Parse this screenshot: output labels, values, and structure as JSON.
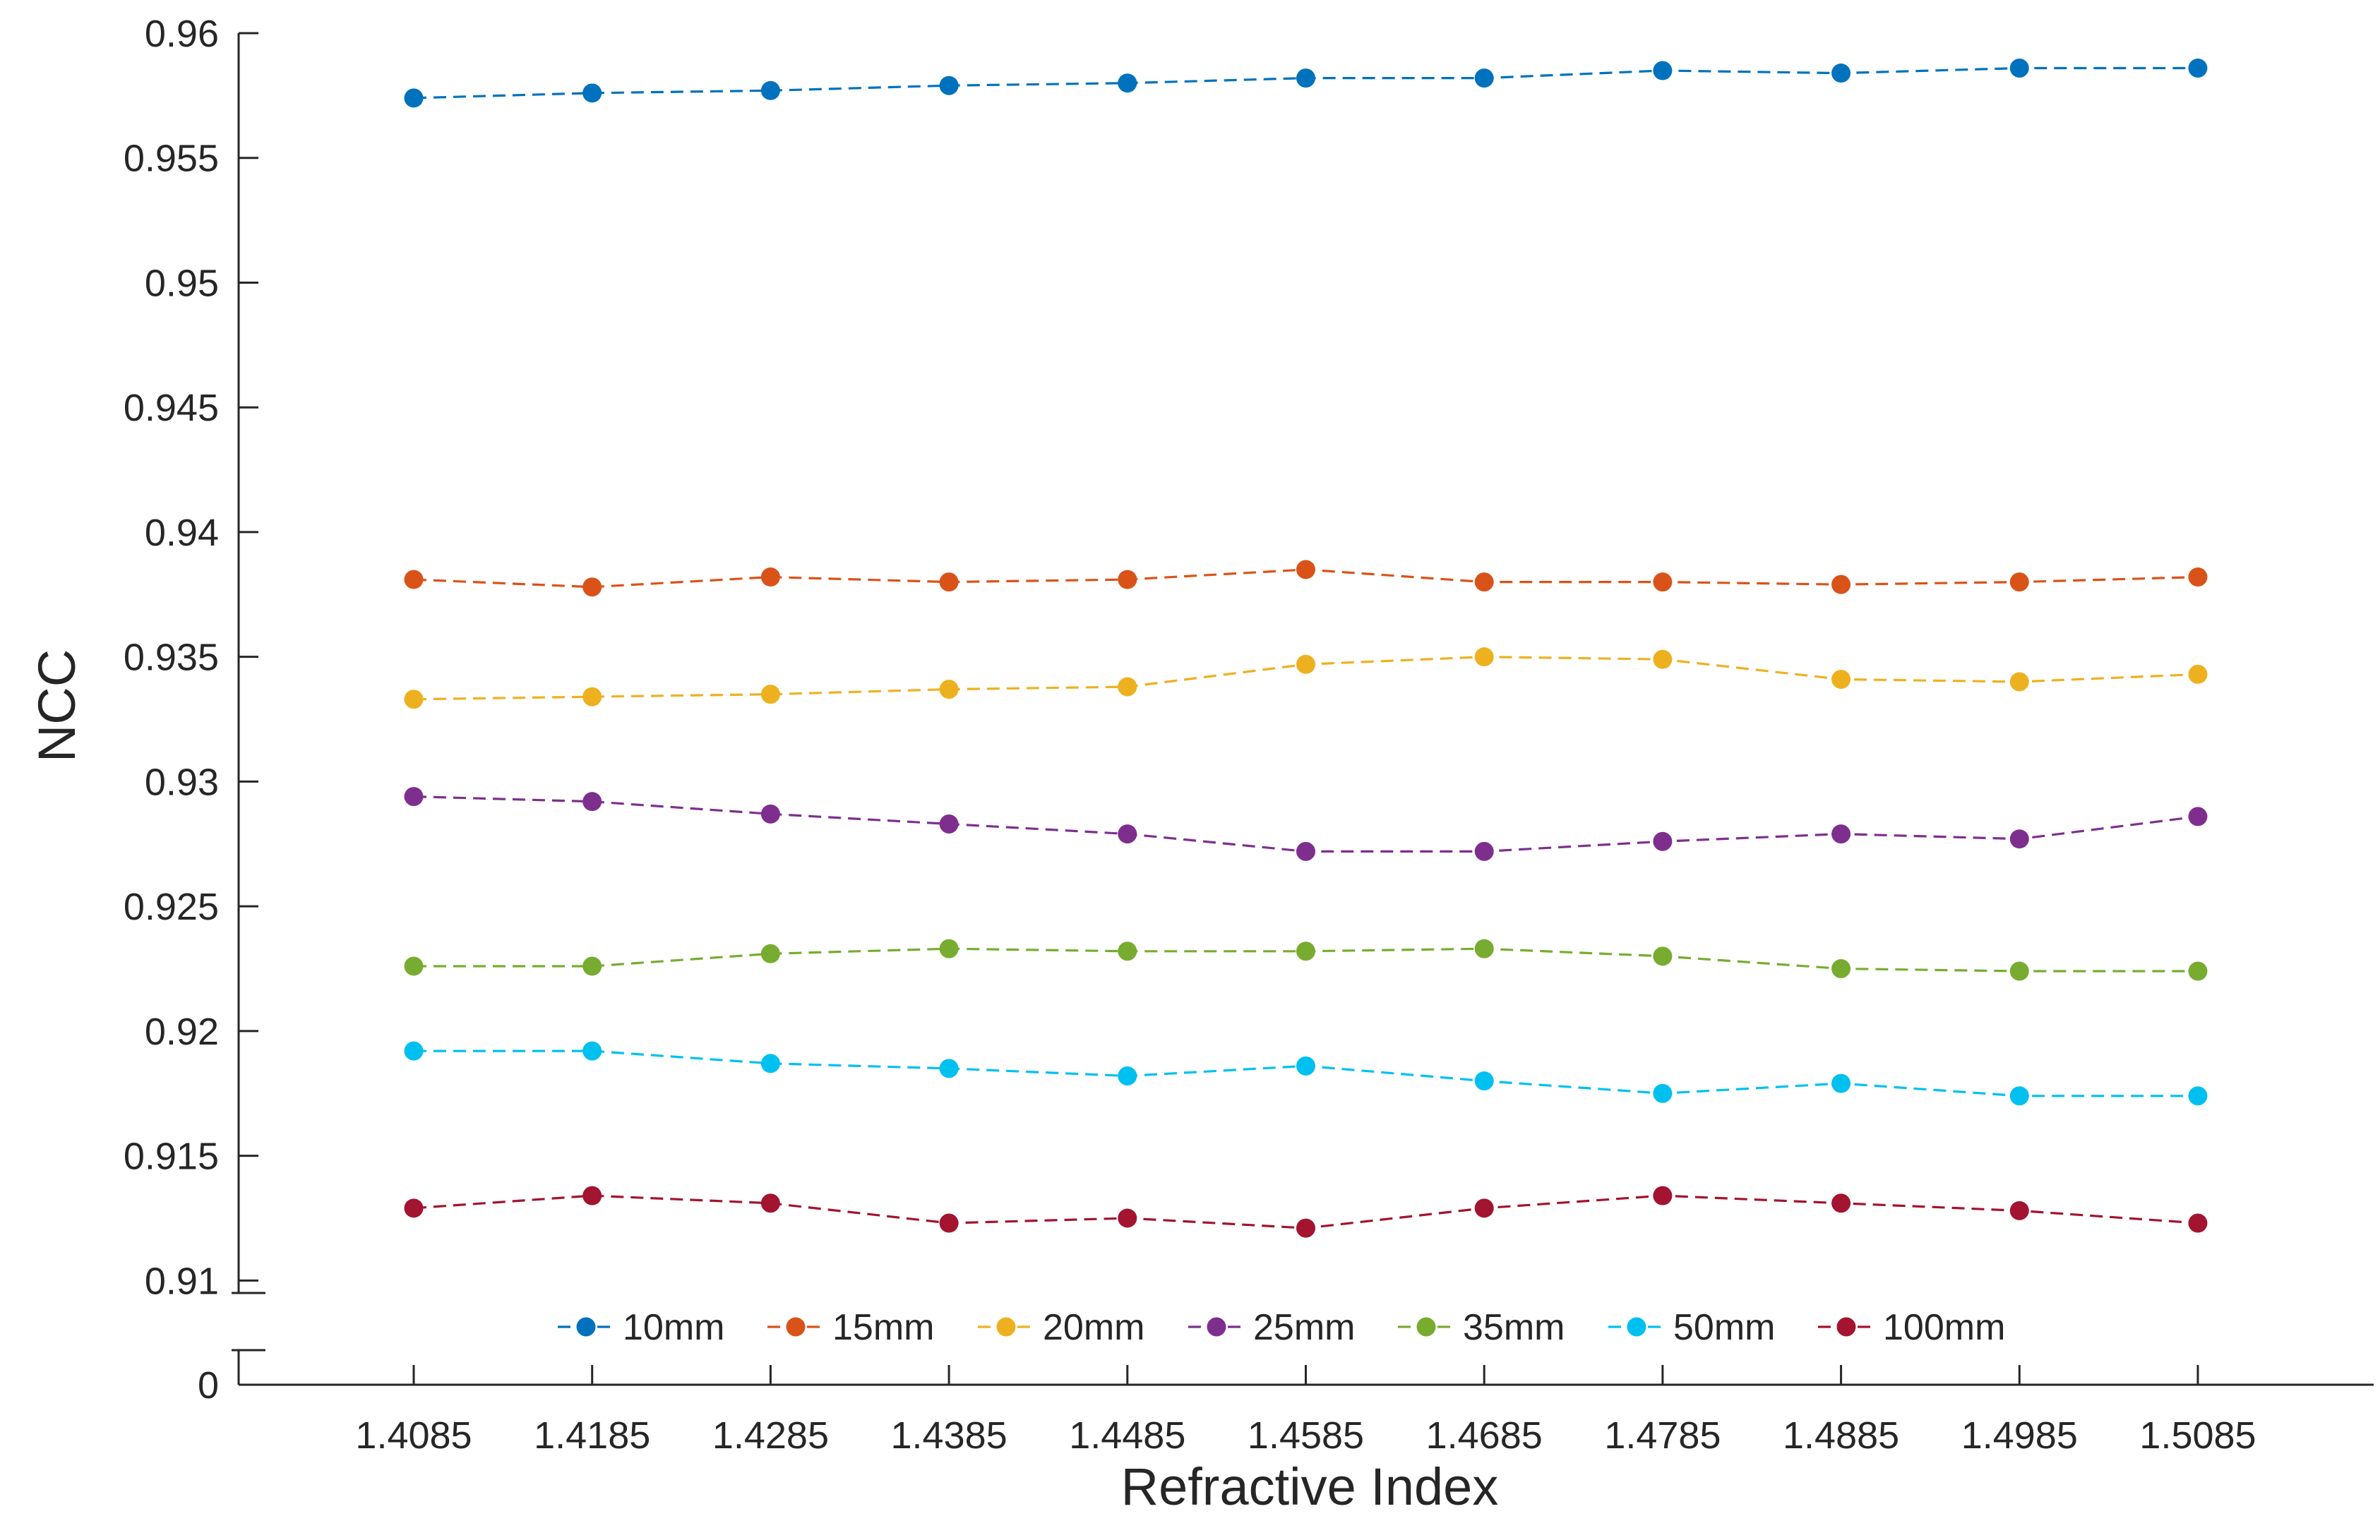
{
  "chart_data": {
    "type": "line",
    "title": "",
    "xlabel": "Refractive Index",
    "ylabel": "NCC",
    "x": [
      1.4085,
      1.4185,
      1.4285,
      1.4385,
      1.4485,
      1.4585,
      1.4685,
      1.4785,
      1.4885,
      1.4985,
      1.5085
    ],
    "x_tick_labels": [
      "1.4085",
      "1.4185",
      "1.4285",
      "1.4385",
      "1.4485",
      "1.4585",
      "1.4685",
      "1.4785",
      "1.4885",
      "1.4985",
      "1.5085"
    ],
    "y_ticks": [
      0.91,
      0.915,
      0.92,
      0.925,
      0.93,
      0.935,
      0.94,
      0.945,
      0.95,
      0.955,
      0.96
    ],
    "y_tick_labels": [
      "0.91",
      "0.915",
      "0.92",
      "0.925",
      "0.93",
      "0.935",
      "0.94",
      "0.945",
      "0.95",
      "0.955",
      "0.96"
    ],
    "ylim": [
      0.9095,
      0.96
    ],
    "y_axis_break": {
      "lower_label": "0",
      "break_between": [
        0,
        0.9095
      ]
    },
    "grid": false,
    "line_style": "dashed",
    "marker": "circle",
    "legend": {
      "placement": "bottom-inside",
      "orientation": "horizontal"
    },
    "series": [
      {
        "name": "10mm",
        "color": "#0072BD",
        "values": [
          0.9574,
          0.9576,
          0.9577,
          0.9579,
          0.958,
          0.9582,
          0.9582,
          0.9585,
          0.9584,
          0.9586,
          0.9586
        ]
      },
      {
        "name": "15mm",
        "color": "#D95319",
        "values": [
          0.9381,
          0.9378,
          0.9382,
          0.938,
          0.9381,
          0.9385,
          0.938,
          0.938,
          0.9379,
          0.938,
          0.9382
        ]
      },
      {
        "name": "20mm",
        "color": "#EDB120",
        "values": [
          0.9333,
          0.9334,
          0.9335,
          0.9337,
          0.9338,
          0.9347,
          0.935,
          0.9349,
          0.9341,
          0.934,
          0.9343
        ]
      },
      {
        "name": "25mm",
        "color": "#7E2F8E",
        "values": [
          0.9294,
          0.9292,
          0.9287,
          0.9283,
          0.9279,
          0.9272,
          0.9272,
          0.9276,
          0.9279,
          0.9277,
          0.9286
        ]
      },
      {
        "name": "35mm",
        "color": "#77AC30",
        "values": [
          0.9226,
          0.9226,
          0.9231,
          0.9233,
          0.9232,
          0.9232,
          0.9233,
          0.923,
          0.9225,
          0.9224,
          0.9224
        ]
      },
      {
        "name": "50mm",
        "color": "#00C0F0",
        "values": [
          0.9192,
          0.9192,
          0.9187,
          0.9185,
          0.9182,
          0.9186,
          0.918,
          0.9175,
          0.9179,
          0.9174,
          0.9174
        ]
      },
      {
        "name": "100mm",
        "color": "#A2142F",
        "values": [
          0.9129,
          0.9134,
          0.9131,
          0.9123,
          0.9125,
          0.9121,
          0.9129,
          0.9134,
          0.9131,
          0.9128,
          0.9123
        ]
      }
    ]
  }
}
